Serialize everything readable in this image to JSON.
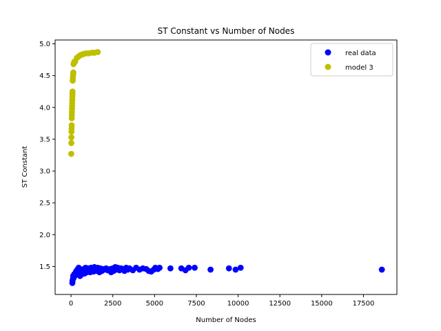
{
  "chart_data": {
    "type": "scatter",
    "title": "ST Constant vs Number of Nodes",
    "xlabel": "Number of Nodes",
    "ylabel": "ST Constant",
    "xlim": [
      -950,
      19500
    ],
    "ylim": [
      1.06,
      5.06
    ],
    "xticks": [
      0,
      2500,
      5000,
      7500,
      10000,
      12500,
      15000,
      17500
    ],
    "xtick_labels": [
      "0",
      "2500",
      "5000",
      "7500",
      "10000",
      "12500",
      "15000",
      "17500"
    ],
    "yticks": [
      1.5,
      2.0,
      2.5,
      3.0,
      3.5,
      4.0,
      4.5,
      5.0
    ],
    "ytick_labels": [
      "1.5",
      "2.0",
      "2.5",
      "3.0",
      "3.5",
      "4.0",
      "4.5",
      "5.0"
    ],
    "grid": false,
    "legend_position": "top-right",
    "series": [
      {
        "name": "real data",
        "color": "#0000ff",
        "points": [
          [
            80,
            1.24
          ],
          [
            90,
            1.27
          ],
          [
            110,
            1.3
          ],
          [
            130,
            1.35
          ],
          [
            160,
            1.32
          ],
          [
            200,
            1.38
          ],
          [
            250,
            1.36
          ],
          [
            300,
            1.42
          ],
          [
            330,
            1.4
          ],
          [
            380,
            1.45
          ],
          [
            420,
            1.38
          ],
          [
            460,
            1.48
          ],
          [
            500,
            1.42
          ],
          [
            540,
            1.35
          ],
          [
            580,
            1.4
          ],
          [
            620,
            1.45
          ],
          [
            660,
            1.38
          ],
          [
            700,
            1.42
          ],
          [
            760,
            1.46
          ],
          [
            820,
            1.39
          ],
          [
            870,
            1.48
          ],
          [
            900,
            1.44
          ],
          [
            950,
            1.41
          ],
          [
            1000,
            1.47
          ],
          [
            1050,
            1.43
          ],
          [
            1100,
            1.45
          ],
          [
            1150,
            1.41
          ],
          [
            1200,
            1.48
          ],
          [
            1250,
            1.44
          ],
          [
            1300,
            1.46
          ],
          [
            1350,
            1.42
          ],
          [
            1400,
            1.49
          ],
          [
            1450,
            1.45
          ],
          [
            1500,
            1.47
          ],
          [
            1550,
            1.43
          ],
          [
            1600,
            1.48
          ],
          [
            1650,
            1.45
          ],
          [
            1700,
            1.41
          ],
          [
            1750,
            1.47
          ],
          [
            1800,
            1.44
          ],
          [
            1850,
            1.43
          ],
          [
            1900,
            1.46
          ],
          [
            2000,
            1.45
          ],
          [
            2100,
            1.47
          ],
          [
            2200,
            1.44
          ],
          [
            2350,
            1.46
          ],
          [
            2400,
            1.41
          ],
          [
            2500,
            1.47
          ],
          [
            2550,
            1.43
          ],
          [
            2650,
            1.49
          ],
          [
            2700,
            1.45
          ],
          [
            2800,
            1.48
          ],
          [
            2900,
            1.44
          ],
          [
            3000,
            1.47
          ],
          [
            3100,
            1.45
          ],
          [
            3200,
            1.43
          ],
          [
            3300,
            1.48
          ],
          [
            3400,
            1.45
          ],
          [
            3500,
            1.47
          ],
          [
            3700,
            1.44
          ],
          [
            3900,
            1.48
          ],
          [
            4100,
            1.45
          ],
          [
            4300,
            1.47
          ],
          [
            4500,
            1.46
          ],
          [
            4650,
            1.43
          ],
          [
            4800,
            1.42
          ],
          [
            4950,
            1.45
          ],
          [
            5050,
            1.48
          ],
          [
            5200,
            1.46
          ],
          [
            5300,
            1.48
          ],
          [
            5950,
            1.47
          ],
          [
            6600,
            1.47
          ],
          [
            6850,
            1.44
          ],
          [
            7050,
            1.48
          ],
          [
            7400,
            1.48
          ],
          [
            8350,
            1.45
          ],
          [
            9450,
            1.47
          ],
          [
            9850,
            1.45
          ],
          [
            10150,
            1.48
          ],
          [
            18600,
            1.45
          ]
        ]
      },
      {
        "name": "model 3",
        "color": "#bfbf00",
        "points": [
          [
            15,
            3.27
          ],
          [
            20,
            3.44
          ],
          [
            25,
            3.53
          ],
          [
            30,
            3.62
          ],
          [
            35,
            3.67
          ],
          [
            40,
            3.72
          ],
          [
            45,
            3.83
          ],
          [
            50,
            3.88
          ],
          [
            55,
            3.93
          ],
          [
            60,
            3.98
          ],
          [
            65,
            4.02
          ],
          [
            70,
            4.07
          ],
          [
            75,
            4.12
          ],
          [
            80,
            4.17
          ],
          [
            85,
            4.21
          ],
          [
            90,
            4.25
          ],
          [
            100,
            4.42
          ],
          [
            110,
            4.46
          ],
          [
            120,
            4.5
          ],
          [
            130,
            4.53
          ],
          [
            140,
            4.55
          ],
          [
            150,
            4.68
          ],
          [
            180,
            4.7
          ],
          [
            200,
            4.72
          ],
          [
            250,
            4.72
          ],
          [
            350,
            4.78
          ],
          [
            450,
            4.8
          ],
          [
            550,
            4.82
          ],
          [
            650,
            4.83
          ],
          [
            750,
            4.84
          ],
          [
            900,
            4.85
          ],
          [
            1050,
            4.85
          ],
          [
            1250,
            4.86
          ],
          [
            1400,
            4.86
          ],
          [
            1600,
            4.87
          ]
        ]
      }
    ]
  }
}
